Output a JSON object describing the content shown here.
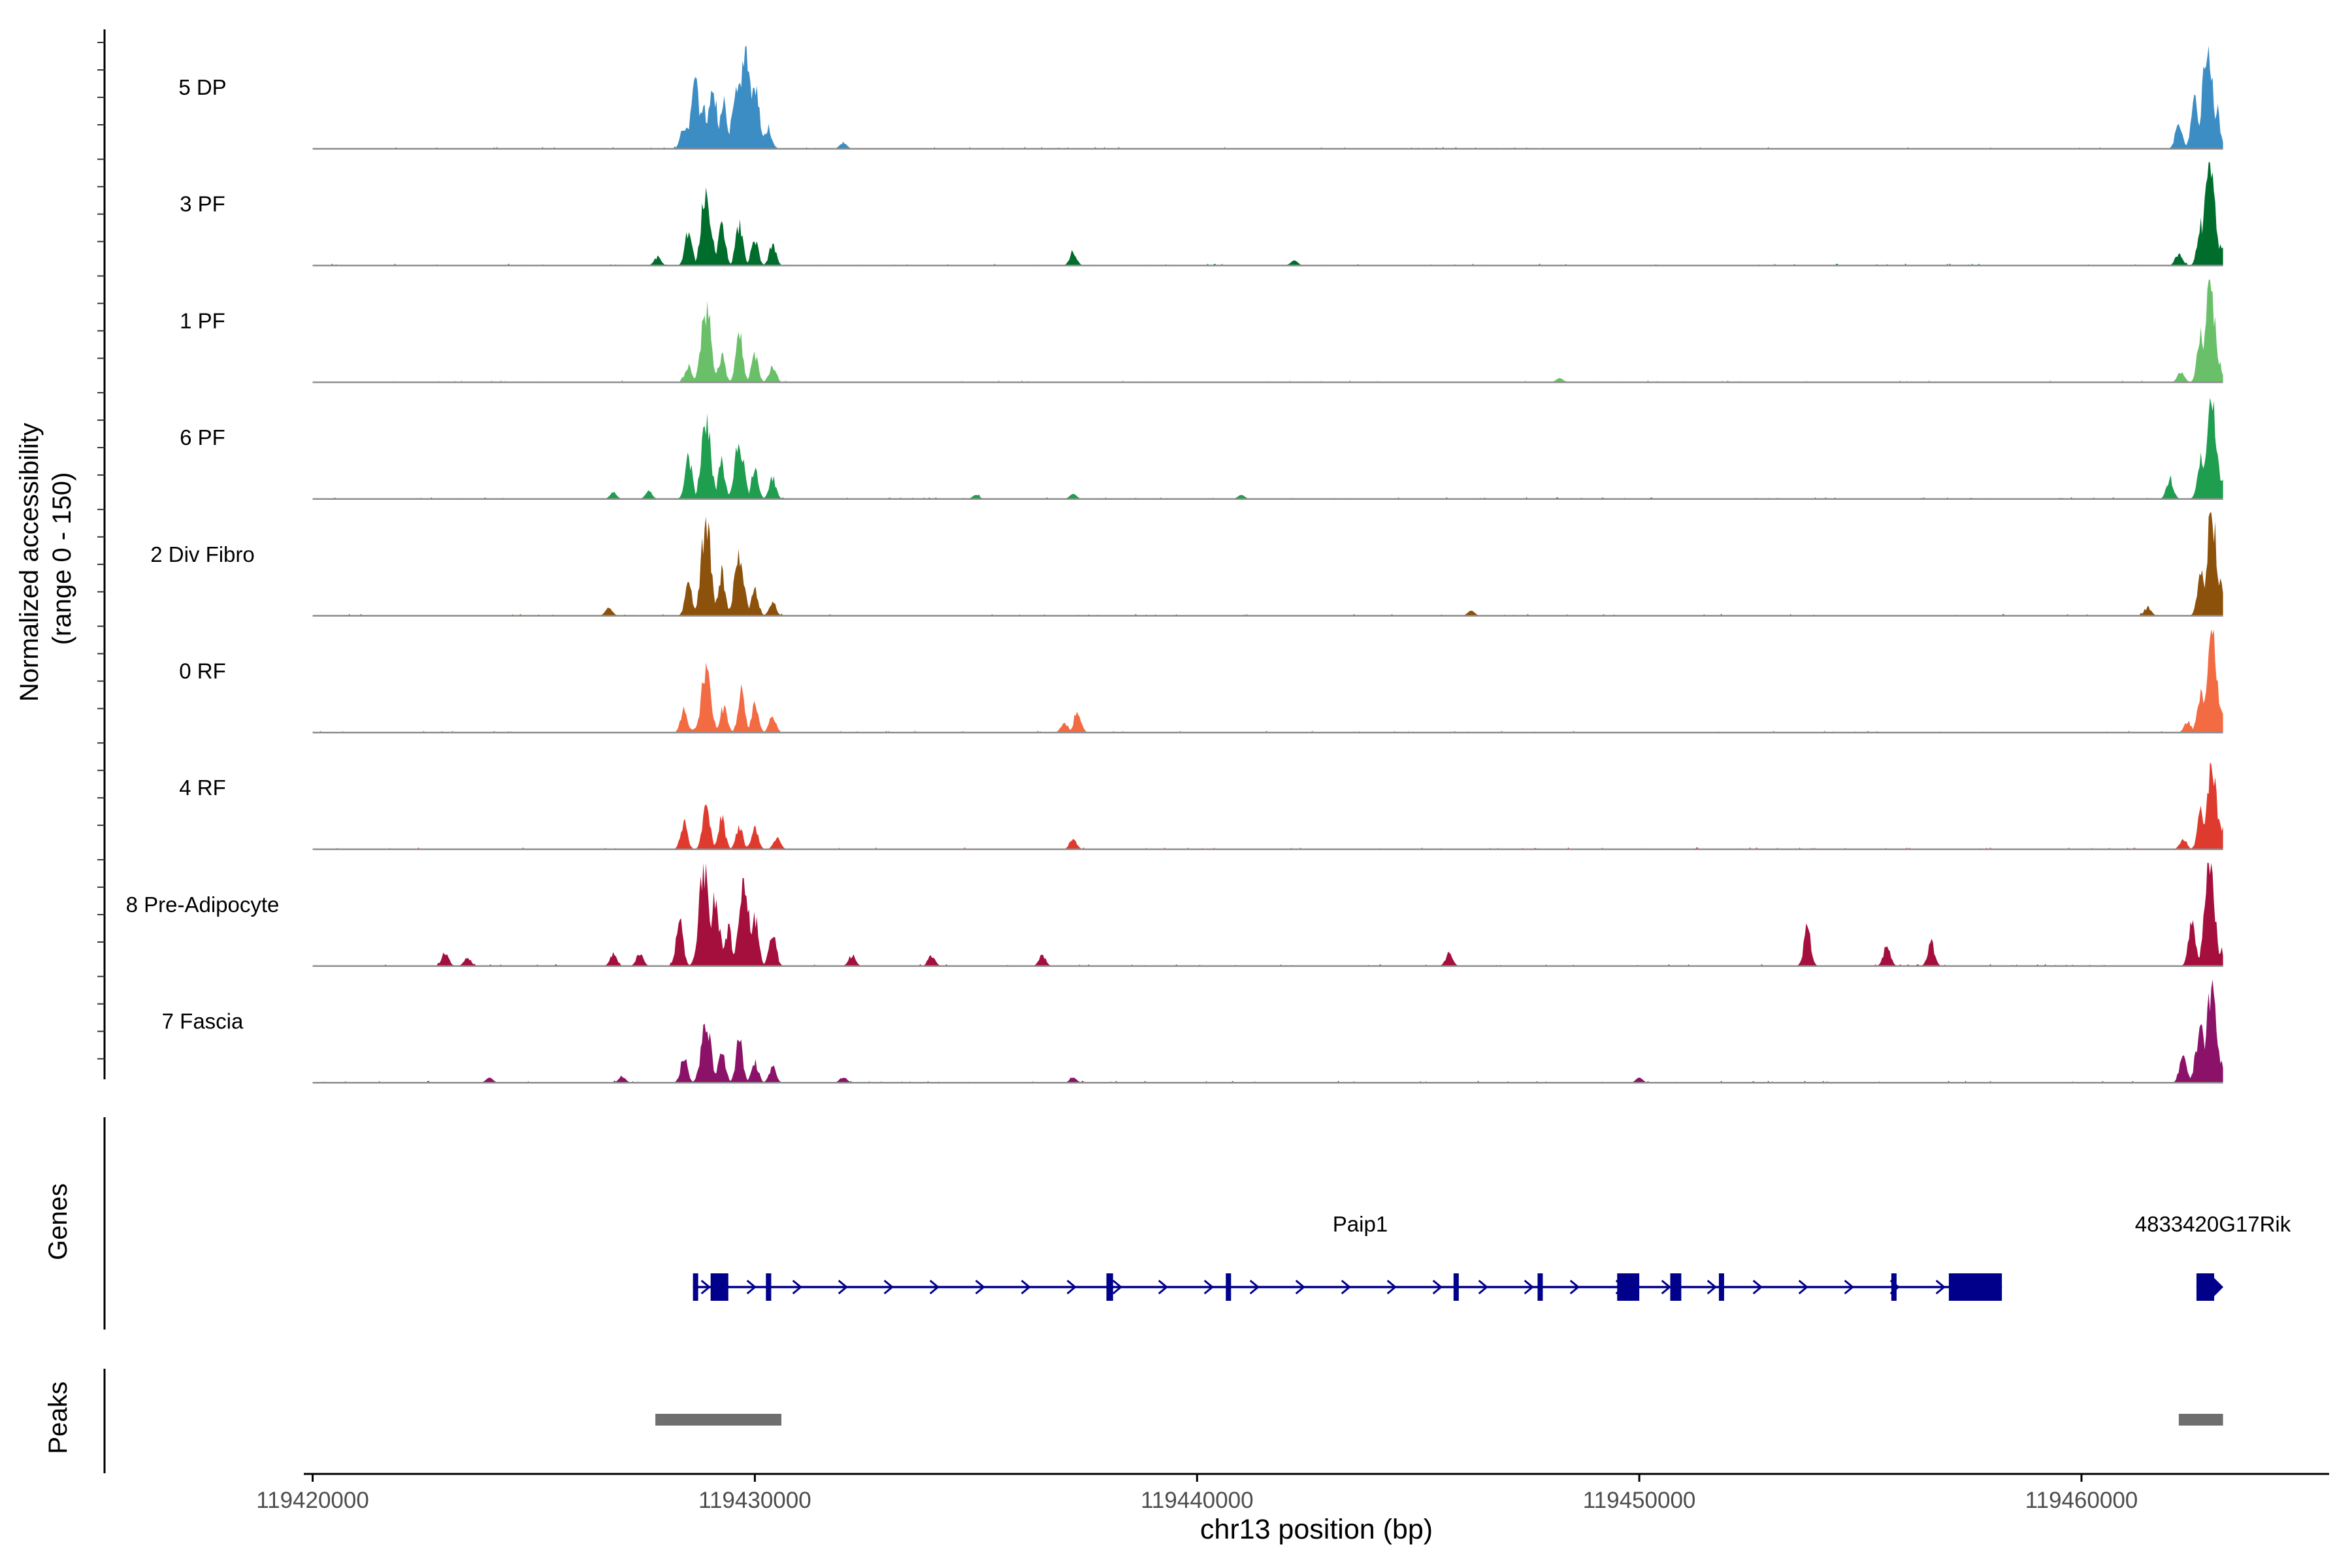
{
  "chart_data": {
    "type": "area",
    "title": "",
    "ylabel": "Normalized accessibility",
    "ylabel_range": "(range 0 - 150)",
    "ylim": [
      0,
      150
    ],
    "xlabel": "chr13 position (bp)",
    "xlim": [
      119419800,
      119465600
    ],
    "x_ticks": [
      119420000,
      119430000,
      119440000,
      119450000,
      119460000
    ],
    "x_tick_labels": [
      "119420000",
      "119430000",
      "119440000",
      "119450000",
      "119460000"
    ],
    "track_xlim": [
      119420000,
      119463200
    ],
    "tracks": [
      {
        "name": "5 DP",
        "color": "#3C8DC4",
        "peaks": [
          [
            119428400,
            0.22
          ],
          [
            119428650,
            0.58
          ],
          [
            119428850,
            0.38
          ],
          [
            119429050,
            0.52
          ],
          [
            119429300,
            0.45
          ],
          [
            119429600,
            0.62
          ],
          [
            119429800,
            0.92
          ],
          [
            119430000,
            0.55
          ],
          [
            119430300,
            0.2
          ],
          [
            119432000,
            0.06
          ],
          [
            119462200,
            0.25
          ],
          [
            119462550,
            0.45
          ],
          [
            119462850,
            1.0
          ],
          [
            119463050,
            0.38
          ]
        ]
      },
      {
        "name": "3 PF",
        "color": "#006D2C",
        "peaks": [
          [
            119427800,
            0.08
          ],
          [
            119428500,
            0.35
          ],
          [
            119428900,
            0.72
          ],
          [
            119429250,
            0.42
          ],
          [
            119429650,
            0.38
          ],
          [
            119430000,
            0.25
          ],
          [
            119430400,
            0.2
          ],
          [
            119437200,
            0.13
          ],
          [
            119442200,
            0.05
          ],
          [
            119462200,
            0.12
          ],
          [
            119462700,
            0.4
          ],
          [
            119462900,
            1.0
          ],
          [
            119463150,
            0.2
          ]
        ]
      },
      {
        "name": "1 PF",
        "color": "#6ABF69",
        "peaks": [
          [
            119428500,
            0.15
          ],
          [
            119428900,
            0.72
          ],
          [
            119429250,
            0.25
          ],
          [
            119429650,
            0.45
          ],
          [
            119430000,
            0.25
          ],
          [
            119430400,
            0.15
          ],
          [
            119448200,
            0.04
          ],
          [
            119462250,
            0.1
          ],
          [
            119462700,
            0.45
          ],
          [
            119462900,
            1.0
          ],
          [
            119463100,
            0.2
          ]
        ]
      },
      {
        "name": "6 PF",
        "color": "#1E9E4E",
        "peaks": [
          [
            119426800,
            0.06
          ],
          [
            119427600,
            0.07
          ],
          [
            119428500,
            0.4
          ],
          [
            119428900,
            0.72
          ],
          [
            119429250,
            0.35
          ],
          [
            119429650,
            0.55
          ],
          [
            119430000,
            0.28
          ],
          [
            119430400,
            0.2
          ],
          [
            119435000,
            0.04
          ],
          [
            119437200,
            0.05
          ],
          [
            119441000,
            0.04
          ],
          [
            119462000,
            0.2
          ],
          [
            119462700,
            0.4
          ],
          [
            119462950,
            1.0
          ],
          [
            119463150,
            0.22
          ]
        ]
      },
      {
        "name": "2 Div Fibro",
        "color": "#8C510A",
        "peaks": [
          [
            119426700,
            0.08
          ],
          [
            119428500,
            0.3
          ],
          [
            119428900,
            0.92
          ],
          [
            119429250,
            0.42
          ],
          [
            119429650,
            0.6
          ],
          [
            119430000,
            0.25
          ],
          [
            119430400,
            0.12
          ],
          [
            119446200,
            0.05
          ],
          [
            119461500,
            0.08
          ],
          [
            119462700,
            0.45
          ],
          [
            119462950,
            1.0
          ],
          [
            119463150,
            0.3
          ]
        ]
      },
      {
        "name": "0 RF",
        "color": "#F26B43",
        "peaks": [
          [
            119428400,
            0.2
          ],
          [
            119428900,
            0.58
          ],
          [
            119429300,
            0.25
          ],
          [
            119429700,
            0.38
          ],
          [
            119430000,
            0.25
          ],
          [
            119430400,
            0.15
          ],
          [
            119437000,
            0.1
          ],
          [
            119437300,
            0.22
          ],
          [
            119462400,
            0.1
          ],
          [
            119462700,
            0.4
          ],
          [
            119462950,
            0.98
          ],
          [
            119463150,
            0.25
          ]
        ]
      },
      {
        "name": "4 RF",
        "color": "#DE3B2E",
        "peaks": [
          [
            119428400,
            0.25
          ],
          [
            119428900,
            0.5
          ],
          [
            119429250,
            0.3
          ],
          [
            119429650,
            0.22
          ],
          [
            119430000,
            0.2
          ],
          [
            119430500,
            0.12
          ],
          [
            119437200,
            0.1
          ],
          [
            119462300,
            0.1
          ],
          [
            119462700,
            0.35
          ],
          [
            119462950,
            0.8
          ],
          [
            119463150,
            0.22
          ]
        ]
      },
      {
        "name": "8 Pre-Adipocyte",
        "color": "#A50F3D",
        "peaks": [
          [
            119423000,
            0.12
          ],
          [
            119423500,
            0.08
          ],
          [
            119426800,
            0.1
          ],
          [
            119427400,
            0.12
          ],
          [
            119428300,
            0.45
          ],
          [
            119428850,
            0.98
          ],
          [
            119429100,
            0.6
          ],
          [
            119429400,
            0.35
          ],
          [
            119429750,
            0.85
          ],
          [
            119430000,
            0.5
          ],
          [
            119430400,
            0.35
          ],
          [
            119432200,
            0.1
          ],
          [
            119434000,
            0.1
          ],
          [
            119436500,
            0.1
          ],
          [
            119445700,
            0.13
          ],
          [
            119453800,
            0.35
          ],
          [
            119455600,
            0.2
          ],
          [
            119456600,
            0.22
          ],
          [
            119462500,
            0.4
          ],
          [
            119462900,
            1.0
          ],
          [
            119463150,
            0.15
          ]
        ]
      },
      {
        "name": "7 Fascia",
        "color": "#8B1268",
        "peaks": [
          [
            119424000,
            0.05
          ],
          [
            119427000,
            0.06
          ],
          [
            119428400,
            0.25
          ],
          [
            119428900,
            0.55
          ],
          [
            119429250,
            0.35
          ],
          [
            119429650,
            0.4
          ],
          [
            119430000,
            0.2
          ],
          [
            119430400,
            0.15
          ],
          [
            119432000,
            0.06
          ],
          [
            119437200,
            0.05
          ],
          [
            119450000,
            0.05
          ],
          [
            119462300,
            0.3
          ],
          [
            119462700,
            0.55
          ],
          [
            119462950,
            0.95
          ],
          [
            119463150,
            0.2
          ]
        ]
      }
    ],
    "genes": {
      "title": "Genes",
      "color": "#00008B",
      "items": [
        {
          "name": "Paip1",
          "strand": "+",
          "start": 119428600,
          "end": 119458200,
          "exons": [
            [
              119428600,
              119428650
            ],
            [
              119429000,
              119429400
            ],
            [
              119430250,
              119430370
            ],
            [
              119437950,
              119438100
            ],
            [
              119440650,
              119440720
            ],
            [
              119445800,
              119445870
            ],
            [
              119447700,
              119447770
            ],
            [
              119449500,
              119450000
            ],
            [
              119450700,
              119450950
            ],
            [
              119451800,
              119451840
            ],
            [
              119455700,
              119455780
            ],
            [
              119457000,
              119458200
            ]
          ]
        },
        {
          "name": "4833420G17Rik",
          "strand": "+",
          "start": 119462600,
          "end": 119463000,
          "exons": [
            [
              119462600,
              119463000
            ]
          ]
        }
      ]
    },
    "peak_regions": {
      "title": "Peaks",
      "color": "#6E6E6E",
      "regions": [
        [
          119427750,
          119430600
        ],
        [
          119462200,
          119463200
        ]
      ]
    }
  }
}
